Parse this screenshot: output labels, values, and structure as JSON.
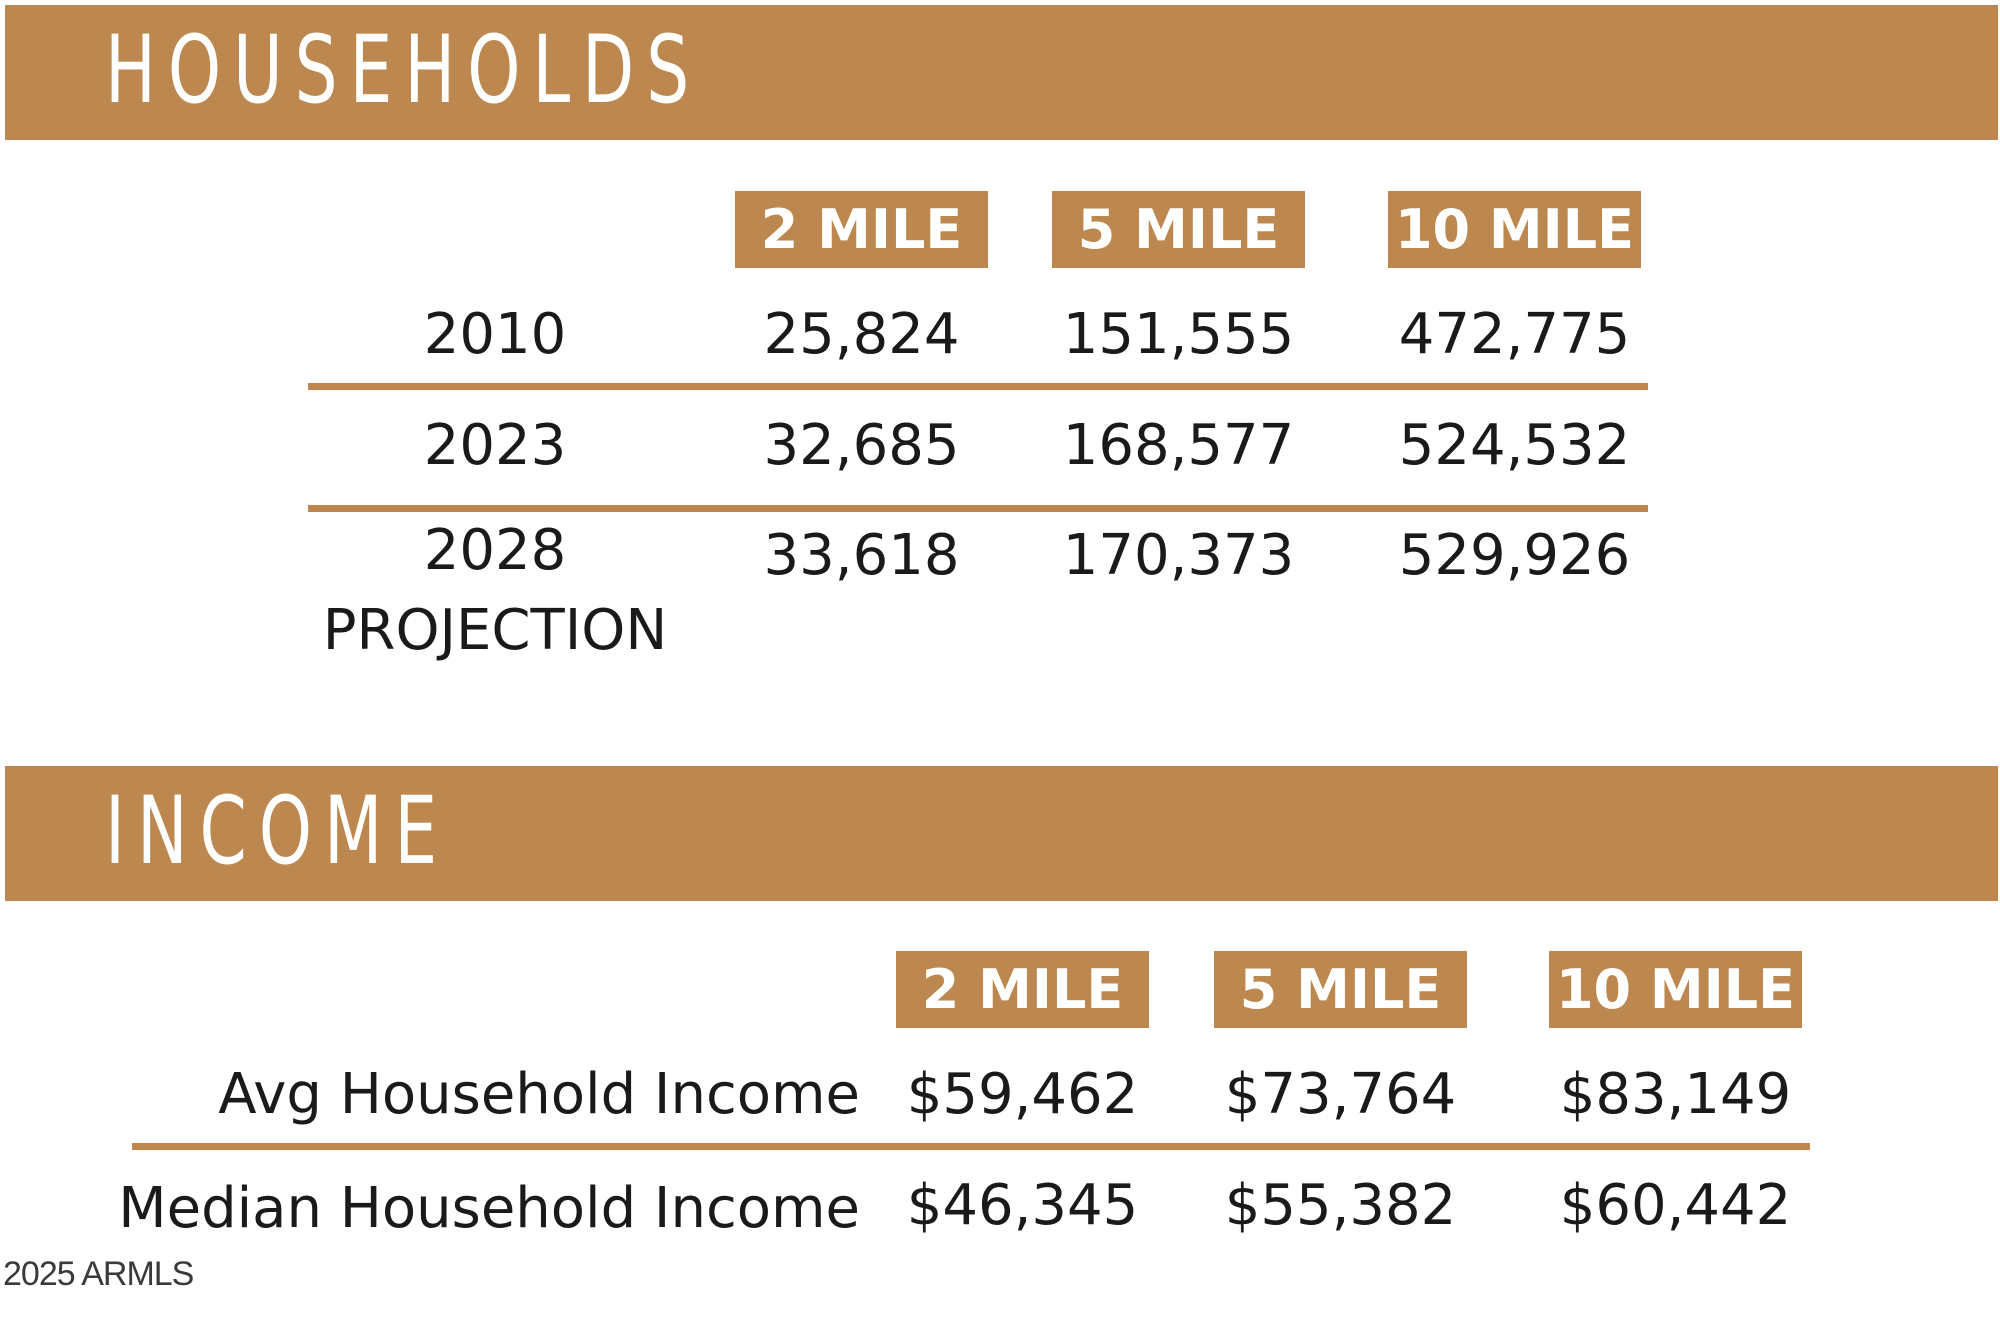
{
  "households": {
    "title": "HOUSEHOLDS",
    "columns": [
      "2 MILE",
      "5 MILE",
      "10 MILE"
    ],
    "rows": [
      {
        "label": "2010",
        "values": [
          "25,824",
          "151,555",
          "472,775"
        ]
      },
      {
        "label": "2023",
        "values": [
          "32,685",
          "168,577",
          "524,532"
        ]
      },
      {
        "label": "2028",
        "label2": "PROJECTION",
        "values": [
          "33,618",
          "170,373",
          "529,926"
        ]
      }
    ]
  },
  "income": {
    "title": "INCOME",
    "columns": [
      "2 MILE",
      "5 MILE",
      "10 MILE"
    ],
    "rows": [
      {
        "label": "Avg Household Income",
        "values": [
          "$59,462",
          "$73,764",
          "$83,149"
        ]
      },
      {
        "label": "Median Household Income",
        "values": [
          "$46,345",
          "$55,382",
          "$60,442"
        ]
      }
    ]
  },
  "footer": {
    "text": "2025 ARMLS"
  },
  "colors": {
    "accent": "#bc884f",
    "text": "#1a1a1a",
    "banner_text": "#ffffff"
  }
}
